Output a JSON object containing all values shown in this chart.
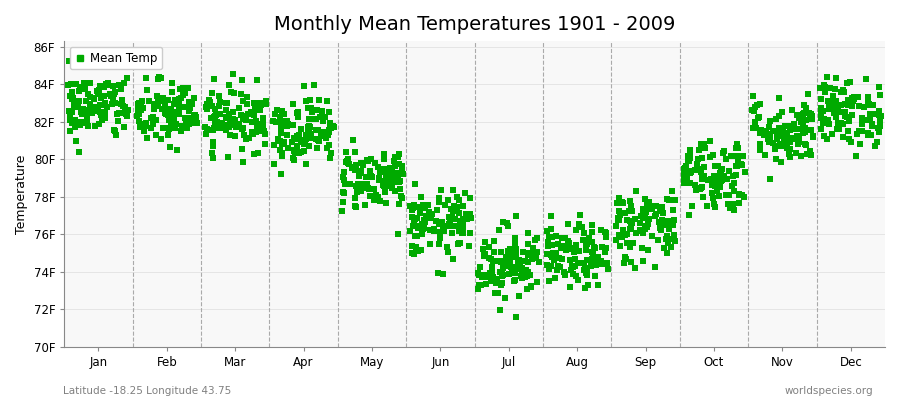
{
  "title": "Monthly Mean Temperatures 1901 - 2009",
  "ylabel": "Temperature",
  "xlabel_bottom_left": "Latitude -18.25 Longitude 43.75",
  "xlabel_bottom_right": "worldspecies.org",
  "months": [
    "Jan",
    "Feb",
    "Mar",
    "Apr",
    "May",
    "Jun",
    "Jul",
    "Aug",
    "Sep",
    "Oct",
    "Nov",
    "Dec"
  ],
  "mean_temps_F": [
    82.8,
    82.4,
    82.2,
    81.6,
    79.0,
    76.5,
    74.5,
    74.8,
    76.5,
    79.2,
    81.5,
    82.5
  ],
  "std_temps_F": [
    0.9,
    0.9,
    0.85,
    0.9,
    0.85,
    0.9,
    1.0,
    0.85,
    1.0,
    1.0,
    0.9,
    0.9
  ],
  "n_years": 109,
  "ylim_min": 70,
  "ylim_max": 86,
  "ytick_step": 2,
  "dot_color": "#00aa00",
  "figure_bg_color": "#ffffff",
  "plot_bg_color": "#f8f8f8",
  "title_fontsize": 14,
  "axis_label_fontsize": 9,
  "tick_label_fontsize": 8.5,
  "legend_fontsize": 8.5,
  "marker": "s",
  "marker_size": 4,
  "seed": 42
}
